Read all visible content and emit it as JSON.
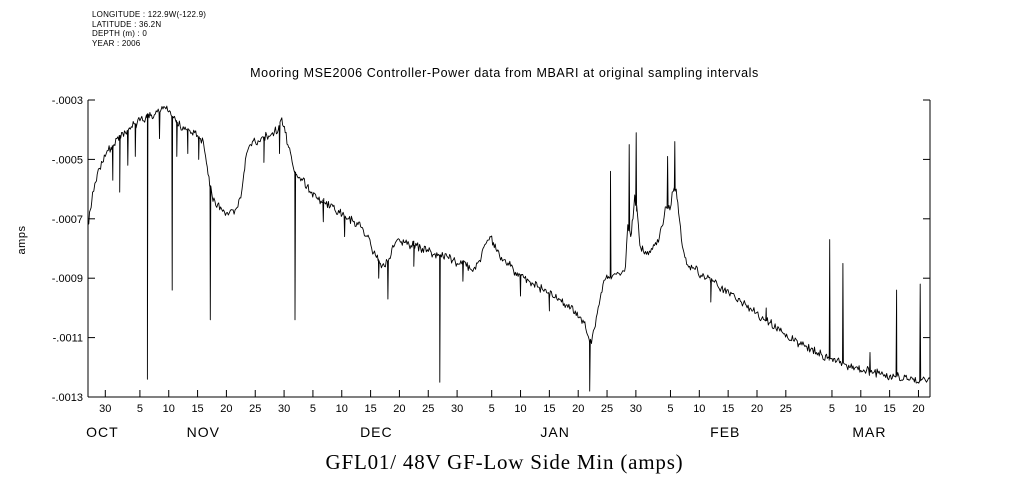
{
  "meta": {
    "lines": [
      "LONGITUDE : 122.9W(-122.9)",
      "LATITUDE : 36.2N",
      "DEPTH (m) : 0",
      "YEAR : 2006"
    ]
  },
  "chart_data": {
    "type": "line",
    "title": "Mooring MSE2006 Controller-Power data from MBARI at original sampling intervals",
    "caption": "GFL01/ 48V GF-Low Side Min (amps)",
    "ylabel": "amps",
    "y_unit": "amps",
    "ylim": [
      -0.0013,
      -0.0003
    ],
    "y_ticks": [
      -0.0003,
      -0.0005,
      -0.0007,
      -0.0009,
      -0.0011,
      -0.0013
    ],
    "y_tick_labels": [
      "-.0003",
      "-.0005",
      "-.0007",
      "-.0009",
      "-.0011",
      "-.0013"
    ],
    "x_unit": "day (0 = 27 Oct 2006)",
    "xlim": [
      0,
      146
    ],
    "x_ticks": [
      [
        3,
        "30"
      ],
      [
        9,
        "5"
      ],
      [
        14,
        "10"
      ],
      [
        19,
        "15"
      ],
      [
        24,
        "20"
      ],
      [
        29,
        "25"
      ],
      [
        34,
        "30"
      ],
      [
        39,
        "5"
      ],
      [
        44,
        "10"
      ],
      [
        49,
        "15"
      ],
      [
        54,
        "20"
      ],
      [
        59,
        "25"
      ],
      [
        64,
        "30"
      ],
      [
        70,
        "5"
      ],
      [
        75,
        "10"
      ],
      [
        80,
        "15"
      ],
      [
        85,
        "20"
      ],
      [
        90,
        "25"
      ],
      [
        95,
        "30"
      ],
      [
        101,
        "5"
      ],
      [
        106,
        "10"
      ],
      [
        111,
        "15"
      ],
      [
        116,
        "20"
      ],
      [
        121,
        "25"
      ],
      [
        129,
        "5"
      ],
      [
        134,
        "10"
      ],
      [
        139,
        "15"
      ],
      [
        144,
        "20"
      ]
    ],
    "month_labels": [
      [
        2.5,
        "OCT"
      ],
      [
        20,
        "NOV"
      ],
      [
        50,
        "DEC"
      ],
      [
        81,
        "JAN"
      ],
      [
        110.5,
        "FEB"
      ],
      [
        135.5,
        "MAR"
      ]
    ],
    "grid": false,
    "legend": "none",
    "series_name": "GFL01/ 48V GF-Low Side Min",
    "line_color": "#000000",
    "value_scale": 0.0001,
    "noise_amp": 0.15,
    "trend_points": [
      [
        0,
        -7.2
      ],
      [
        0.4,
        -6.7
      ],
      [
        0.8,
        -6.1
      ],
      [
        1.2,
        -5.8
      ],
      [
        1.6,
        -5.5
      ],
      [
        2,
        -5.3
      ],
      [
        2.5,
        -5.1
      ],
      [
        3,
        -4.9
      ],
      [
        3.5,
        -4.7
      ],
      [
        4,
        -4.6
      ],
      [
        4.5,
        -4.5
      ],
      [
        5,
        -4.3
      ],
      [
        5.5,
        -4.2
      ],
      [
        6,
        -4.1
      ],
      [
        6.5,
        -4.1
      ],
      [
        7,
        -4.0
      ],
      [
        7.5,
        -3.9
      ],
      [
        8,
        -3.8
      ],
      [
        8.5,
        -3.8
      ],
      [
        9,
        -3.7
      ],
      [
        9.5,
        -3.7
      ],
      [
        10,
        -3.6
      ],
      [
        10.6,
        -3.6
      ],
      [
        11,
        -3.5
      ],
      [
        11.5,
        -3.5
      ],
      [
        12,
        -3.4
      ],
      [
        12.5,
        -3.4
      ],
      [
        13,
        -3.3
      ],
      [
        13.5,
        -3.3
      ],
      [
        14,
        -3.4
      ],
      [
        14.4,
        -3.5
      ],
      [
        14.8,
        -3.6
      ],
      [
        15.2,
        -3.7
      ],
      [
        16,
        -3.9
      ],
      [
        16.5,
        -3.9
      ],
      [
        17,
        -4.0
      ],
      [
        17.5,
        -4.0
      ],
      [
        18,
        -4.1
      ],
      [
        18.5,
        -4.1
      ],
      [
        19,
        -4.2
      ],
      [
        19.5,
        -4.3
      ],
      [
        20,
        -4.4
      ],
      [
        20.4,
        -4.9
      ],
      [
        20.8,
        -5.5
      ],
      [
        21.5,
        -6.2
      ],
      [
        22,
        -6.4
      ],
      [
        22.5,
        -6.5
      ],
      [
        23,
        -6.6
      ],
      [
        23.5,
        -6.7
      ],
      [
        24,
        -6.8
      ],
      [
        24.5,
        -6.8
      ],
      [
        25,
        -6.7
      ],
      [
        25.5,
        -6.7
      ],
      [
        26,
        -6.6
      ],
      [
        26.5,
        -6.3
      ],
      [
        26.9,
        -5.7
      ],
      [
        27.3,
        -5.0
      ],
      [
        27.7,
        -4.7
      ],
      [
        28.2,
        -4.5
      ],
      [
        29,
        -4.4
      ],
      [
        30,
        -4.3
      ],
      [
        31,
        -4.2
      ],
      [
        32,
        -4.1
      ],
      [
        33,
        -4.0
      ],
      [
        33.6,
        -3.6
      ],
      [
        34.2,
        -4.1
      ],
      [
        34.8,
        -4.6
      ],
      [
        35.4,
        -5.1
      ],
      [
        36,
        -5.5
      ],
      [
        36.6,
        -5.6
      ],
      [
        37.2,
        -5.7
      ],
      [
        38,
        -5.9
      ],
      [
        38.8,
        -6.1
      ],
      [
        39.6,
        -6.3
      ],
      [
        40.4,
        -6.4
      ],
      [
        41.2,
        -6.5
      ],
      [
        42,
        -6.6
      ],
      [
        42.8,
        -6.7
      ],
      [
        43.6,
        -6.8
      ],
      [
        44.4,
        -6.9
      ],
      [
        45.2,
        -7.0
      ],
      [
        46,
        -7.1
      ],
      [
        46.8,
        -7.2
      ],
      [
        47.6,
        -7.3
      ],
      [
        48.4,
        -7.6
      ],
      [
        49.2,
        -8.0
      ],
      [
        50,
        -8.3
      ],
      [
        50.7,
        -8.5
      ],
      [
        51.4,
        -8.6
      ],
      [
        52.1,
        -8.4
      ],
      [
        52.7,
        -8.0
      ],
      [
        53.3,
        -7.8
      ],
      [
        54,
        -7.7
      ],
      [
        55,
        -7.8
      ],
      [
        56,
        -7.9
      ],
      [
        57,
        -7.9
      ],
      [
        58,
        -8.0
      ],
      [
        59,
        -8.1
      ],
      [
        60,
        -8.2
      ],
      [
        60.8,
        -8.2
      ],
      [
        61.6,
        -8.3
      ],
      [
        62.4,
        -8.3
      ],
      [
        63.2,
        -8.4
      ],
      [
        64,
        -8.5
      ],
      [
        64.8,
        -8.5
      ],
      [
        65.6,
        -8.6
      ],
      [
        66.4,
        -8.7
      ],
      [
        67.2,
        -8.7
      ],
      [
        67.9,
        -8.4
      ],
      [
        68.5,
        -8.0
      ],
      [
        69.1,
        -7.8
      ],
      [
        69.7,
        -7.6
      ],
      [
        70.3,
        -7.8
      ],
      [
        70.9,
        -8.1
      ],
      [
        71.7,
        -8.3
      ],
      [
        72.5,
        -8.5
      ],
      [
        73.3,
        -8.6
      ],
      [
        74.1,
        -8.8
      ],
      [
        74.9,
        -8.9
      ],
      [
        75.7,
        -9.0
      ],
      [
        76.5,
        -9.1
      ],
      [
        77.3,
        -9.2
      ],
      [
        78.1,
        -9.3
      ],
      [
        78.9,
        -9.4
      ],
      [
        79.7,
        -9.5
      ],
      [
        80.5,
        -9.6
      ],
      [
        81.3,
        -9.7
      ],
      [
        82.1,
        -9.8
      ],
      [
        82.9,
        -9.9
      ],
      [
        83.7,
        -10.0
      ],
      [
        84.5,
        -10.1
      ],
      [
        85.3,
        -10.3
      ],
      [
        86,
        -10.5
      ],
      [
        86.6,
        -10.9
      ],
      [
        87.3,
        -11.2
      ],
      [
        87.8,
        -10.7
      ],
      [
        88.3,
        -10.2
      ],
      [
        88.8,
        -9.7
      ],
      [
        89.3,
        -9.2
      ],
      [
        89.8,
        -9.0
      ],
      [
        90.4,
        -9.0
      ],
      [
        91,
        -8.9
      ],
      [
        91.8,
        -8.8
      ],
      [
        92.6,
        -8.8
      ],
      [
        93.2,
        -8.6
      ],
      [
        93.6,
        -7.2
      ],
      [
        94.1,
        -7.6
      ],
      [
        94.5,
        -7.0
      ],
      [
        94.8,
        -6.2
      ],
      [
        95.3,
        -6.9
      ],
      [
        95.7,
        -7.9
      ],
      [
        96.3,
        -8.1
      ],
      [
        97,
        -8.1
      ],
      [
        97.7,
        -8.0
      ],
      [
        98.4,
        -7.8
      ],
      [
        99.1,
        -7.6
      ],
      [
        99.7,
        -7.2
      ],
      [
        100.1,
        -6.6
      ],
      [
        100.9,
        -6.7
      ],
      [
        101.3,
        -6.1
      ],
      [
        102,
        -6.0
      ],
      [
        102.4,
        -6.8
      ],
      [
        102.9,
        -7.7
      ],
      [
        103.5,
        -8.3
      ],
      [
        104.3,
        -8.6
      ],
      [
        105.3,
        -8.7
      ],
      [
        106.3,
        -8.9
      ],
      [
        107.3,
        -9.0
      ],
      [
        108.3,
        -9.1
      ],
      [
        109.3,
        -9.3
      ],
      [
        110.3,
        -9.4
      ],
      [
        111.3,
        -9.6
      ],
      [
        112.3,
        -9.7
      ],
      [
        113.3,
        -9.8
      ],
      [
        114.3,
        -10.0
      ],
      [
        115.3,
        -10.1
      ],
      [
        116.3,
        -10.3
      ],
      [
        117.3,
        -10.4
      ],
      [
        118.3,
        -10.5
      ],
      [
        119.3,
        -10.7
      ],
      [
        120.3,
        -10.8
      ],
      [
        121.3,
        -11.0
      ],
      [
        122.3,
        -11.1
      ],
      [
        123.3,
        -11.2
      ],
      [
        124.3,
        -11.3
      ],
      [
        125.3,
        -11.4
      ],
      [
        126.3,
        -11.5
      ],
      [
        127.3,
        -11.6
      ],
      [
        128.2,
        -11.7
      ],
      [
        129,
        -11.7
      ],
      [
        129.8,
        -11.8
      ],
      [
        130.5,
        -11.8
      ],
      [
        131.3,
        -11.9
      ],
      [
        132.2,
        -12.0
      ],
      [
        133.1,
        -12.0
      ],
      [
        134,
        -12.1
      ],
      [
        135,
        -12.1
      ],
      [
        136,
        -12.2
      ],
      [
        137,
        -12.2
      ],
      [
        138,
        -12.3
      ],
      [
        139,
        -12.3
      ],
      [
        139.9,
        -12.3
      ],
      [
        140.6,
        -12.3
      ],
      [
        141.4,
        -12.4
      ],
      [
        142.2,
        -12.4
      ],
      [
        143,
        -12.4
      ],
      [
        143.9,
        -12.5
      ],
      [
        144.7,
        -12.4
      ],
      [
        145.4,
        -12.5
      ],
      [
        146,
        -12.4
      ]
    ],
    "spikes": [
      [
        4.3,
        -5.7
      ],
      [
        5.5,
        -6.1
      ],
      [
        6.9,
        -5.2
      ],
      [
        8.2,
        -4.9
      ],
      [
        10.3,
        -12.4
      ],
      [
        12.4,
        -4.3
      ],
      [
        14.6,
        -9.4
      ],
      [
        15.4,
        -4.9
      ],
      [
        17.3,
        -4.8
      ],
      [
        19.2,
        -5.0
      ],
      [
        21.2,
        -10.4
      ],
      [
        30.5,
        -5.1
      ],
      [
        33.2,
        -4.8
      ],
      [
        35.9,
        -10.4
      ],
      [
        40.8,
        -7.1
      ],
      [
        44.5,
        -7.6
      ],
      [
        50.4,
        -9.0
      ],
      [
        52.0,
        -9.7
      ],
      [
        56.5,
        -8.6
      ],
      [
        61.0,
        -12.5
      ],
      [
        65.0,
        -9.1
      ],
      [
        75.0,
        -9.6
      ],
      [
        80.0,
        -10.1
      ],
      [
        87.0,
        -12.8
      ],
      [
        90.6,
        -5.4
      ],
      [
        93.85,
        -4.5
      ],
      [
        95.05,
        -4.1
      ],
      [
        100.5,
        -4.9
      ],
      [
        101.75,
        -4.4
      ],
      [
        108.0,
        -9.8
      ],
      [
        117.6,
        -10.0
      ],
      [
        128.6,
        -7.7
      ],
      [
        130.9,
        -8.5
      ],
      [
        135.6,
        -11.5
      ],
      [
        140.2,
        -9.4
      ],
      [
        144.3,
        -9.2
      ]
    ]
  }
}
